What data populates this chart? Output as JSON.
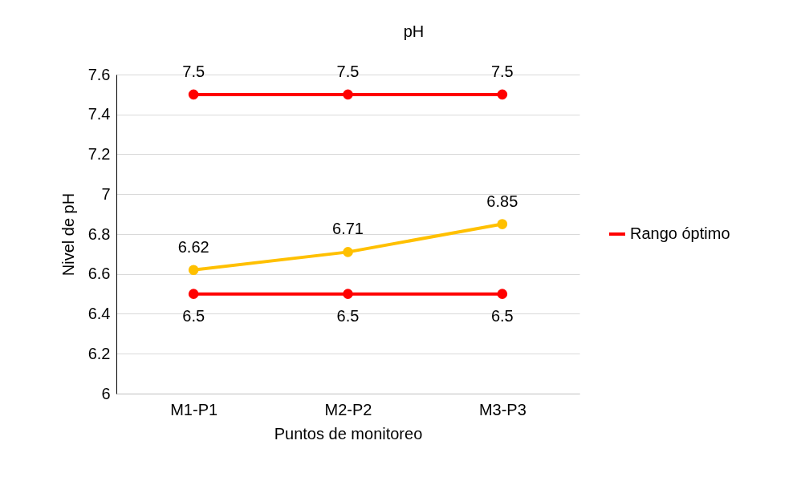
{
  "chart_data": {
    "type": "line",
    "title": "pH",
    "xlabel": "Puntos de monitoreo",
    "ylabel": "Nivel de pH",
    "categories": [
      "M1-P1",
      "M2-P2",
      "M3-P3"
    ],
    "series": [
      {
        "name": "Rango óptimo",
        "color": "#ff0000",
        "values": [
          7.5,
          7.5,
          7.5
        ]
      },
      {
        "color": "#ffc000",
        "values": [
          6.62,
          6.71,
          6.85
        ]
      },
      {
        "color": "#ff0000",
        "values": [
          6.5,
          6.5,
          6.5
        ]
      }
    ],
    "ylim": [
      6,
      7.6
    ],
    "yticks": [
      6,
      6.2,
      6.4,
      6.6,
      6.8,
      7,
      7.2,
      7.4,
      7.6
    ],
    "grid": "y",
    "legend": "right",
    "marker": "circle",
    "line_style": "solid",
    "data_labels": true
  }
}
